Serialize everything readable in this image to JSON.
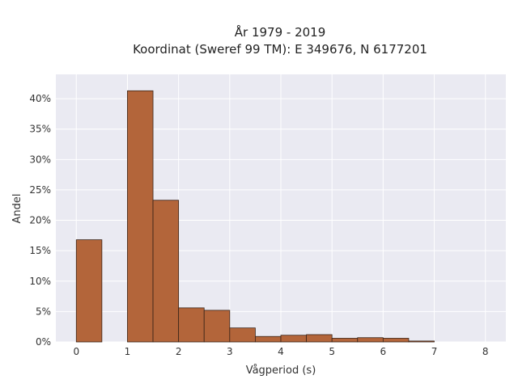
{
  "chart_data": {
    "type": "bar",
    "title_line1": "År 1979 - 2019",
    "title_line2": "Koordinat (Sweref 99 TM): E 349676, N 6177201",
    "xlabel": "Vågperiod (s)",
    "ylabel": "Andel",
    "xlim": [
      -0.4,
      8.4
    ],
    "ylim": [
      0,
      0.44
    ],
    "xticks": [
      0,
      1,
      2,
      3,
      4,
      5,
      6,
      7,
      8
    ],
    "yticks": [
      0,
      0.05,
      0.1,
      0.15,
      0.2,
      0.25,
      0.3,
      0.35,
      0.4
    ],
    "ytick_labels": [
      "0%",
      "5%",
      "10%",
      "15%",
      "20%",
      "25%",
      "30%",
      "35%",
      "40%"
    ],
    "bin_width": 0.5,
    "bins": [
      {
        "x0": 0.0,
        "value": 0.168
      },
      {
        "x0": 1.0,
        "value": 0.413
      },
      {
        "x0": 1.5,
        "value": 0.233
      },
      {
        "x0": 2.0,
        "value": 0.056
      },
      {
        "x0": 2.5,
        "value": 0.052
      },
      {
        "x0": 3.0,
        "value": 0.023
      },
      {
        "x0": 3.5,
        "value": 0.009
      },
      {
        "x0": 4.0,
        "value": 0.011
      },
      {
        "x0": 4.5,
        "value": 0.012
      },
      {
        "x0": 5.0,
        "value": 0.006
      },
      {
        "x0": 5.5,
        "value": 0.007
      },
      {
        "x0": 6.0,
        "value": 0.006
      },
      {
        "x0": 6.5,
        "value": 0.0015
      }
    ],
    "grid": true,
    "colors": {
      "bar_fill": "#b3653a",
      "bar_stroke": "#3a2418",
      "plot_background": "#eaeaf2",
      "grid": "#ffffff"
    }
  }
}
